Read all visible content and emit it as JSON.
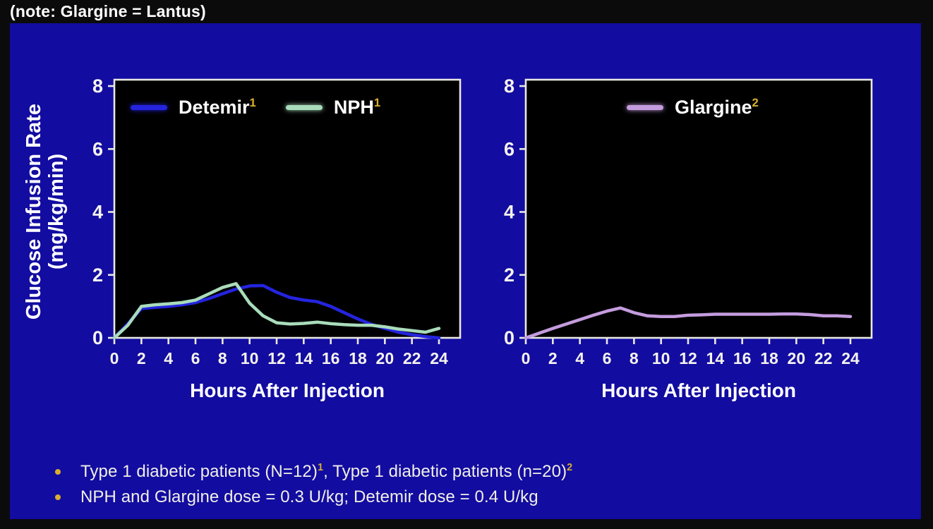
{
  "note": "(note: Glargine = Lantus)",
  "colors": {
    "slide_bg": "#120CA0",
    "plot_bg": "#000000",
    "axis": "#E9E8E2",
    "text": "#F5F3EE",
    "gold": "#D9AE2E",
    "detemir_line": "#2424DE",
    "nph_line": "#A9DCBB",
    "glargine_line": "#C49CDE"
  },
  "y_axis_title": {
    "line1": "Glucose Infusion Rate",
    "line2": "(mg/kg/min)"
  },
  "chart_data": [
    {
      "type": "line",
      "title": "",
      "xlabel": "Hours After Injection",
      "ylabel": "Glucose Infusion Rate (mg/kg/min)",
      "xlim": [
        0,
        24
      ],
      "ylim": [
        0,
        8
      ],
      "grid": false,
      "legend_position": "top-inside",
      "x_ticks": [
        0,
        2,
        4,
        6,
        8,
        10,
        12,
        14,
        16,
        18,
        20,
        22,
        24
      ],
      "y_ticks": [
        0,
        2,
        4,
        6,
        8
      ],
      "x": [
        0,
        1,
        2,
        3,
        4,
        5,
        6,
        7,
        8,
        9,
        10,
        11,
        12,
        13,
        14,
        15,
        16,
        17,
        18,
        19,
        20,
        21,
        22,
        23,
        24
      ],
      "series": [
        {
          "name": "Detemir",
          "sup": "1",
          "color": "#2424DE",
          "values": [
            0,
            0.45,
            0.93,
            0.97,
            1.0,
            1.05,
            1.12,
            1.25,
            1.4,
            1.55,
            1.65,
            1.66,
            1.45,
            1.28,
            1.2,
            1.15,
            1.0,
            0.8,
            0.6,
            0.43,
            0.3,
            0.18,
            0.1,
            0.04,
            0
          ]
        },
        {
          "name": "NPH",
          "sup": "1",
          "color": "#A9DCBB",
          "values": [
            0,
            0.4,
            1.0,
            1.05,
            1.08,
            1.12,
            1.2,
            1.4,
            1.6,
            1.72,
            1.1,
            0.7,
            0.48,
            0.44,
            0.46,
            0.5,
            0.45,
            0.42,
            0.4,
            0.4,
            0.35,
            0.28,
            0.23,
            0.18,
            0.3
          ]
        }
      ]
    },
    {
      "type": "line",
      "title": "",
      "xlabel": "Hours After Injection",
      "ylabel": "Glucose Infusion Rate (mg/kg/min)",
      "xlim": [
        0,
        24
      ],
      "ylim": [
        0,
        8
      ],
      "grid": false,
      "legend_position": "top-inside",
      "x_ticks": [
        0,
        2,
        4,
        6,
        8,
        10,
        12,
        14,
        16,
        18,
        20,
        22,
        24
      ],
      "y_ticks": [
        0,
        2,
        4,
        6,
        8
      ],
      "x": [
        0,
        1,
        2,
        3,
        4,
        5,
        6,
        7,
        8,
        9,
        10,
        11,
        12,
        13,
        14,
        15,
        16,
        17,
        18,
        19,
        20,
        21,
        22,
        23,
        24
      ],
      "series": [
        {
          "name": "Glargine",
          "sup": "2",
          "color": "#C49CDE",
          "values": [
            0,
            0.15,
            0.3,
            0.44,
            0.58,
            0.72,
            0.85,
            0.95,
            0.8,
            0.7,
            0.68,
            0.68,
            0.72,
            0.73,
            0.75,
            0.75,
            0.75,
            0.75,
            0.75,
            0.76,
            0.76,
            0.74,
            0.7,
            0.7,
            0.68
          ]
        }
      ]
    }
  ],
  "bullets": [
    {
      "segments": [
        {
          "text": "Type 1 diabetic patients (N=12)"
        },
        {
          "sup": "1"
        },
        {
          "text": ", Type 1 diabetic patients (n=20)"
        },
        {
          "sup": "2"
        }
      ]
    },
    {
      "segments": [
        {
          "text": "NPH and Glargine dose = 0.3 U/kg; Detemir dose = 0.4 U/kg"
        }
      ]
    }
  ]
}
